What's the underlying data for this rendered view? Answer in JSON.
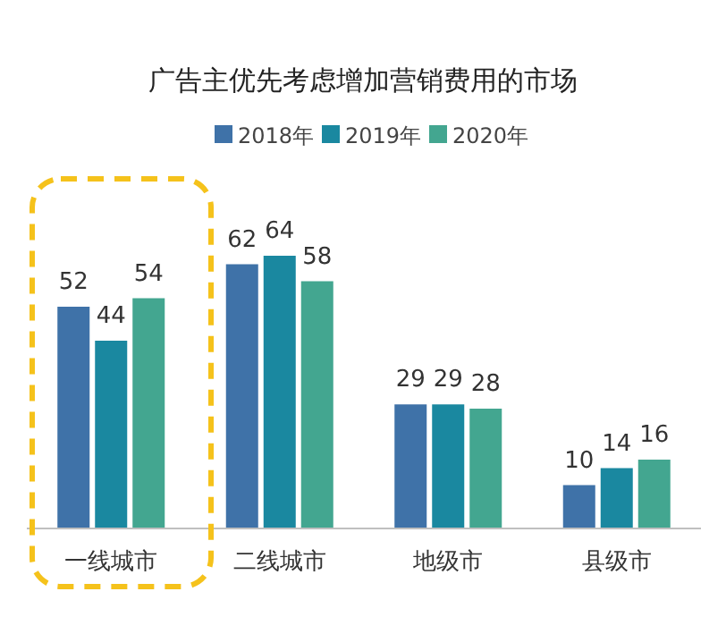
{
  "chart_data": {
    "type": "bar",
    "title": "广告主优先考虑增加营销费用的市场",
    "categories": [
      "一线城市",
      "二线城市",
      "地级市",
      "县级市"
    ],
    "series": [
      {
        "name": "2018年",
        "color": "#3f72a8",
        "values": [
          52,
          62,
          29,
          10
        ]
      },
      {
        "name": "2019年",
        "color": "#1a88a0",
        "values": [
          44,
          64,
          29,
          14
        ]
      },
      {
        "name": "2020年",
        "color": "#43a690",
        "values": [
          54,
          58,
          28,
          16
        ]
      }
    ],
    "data_labels": true,
    "legend": "top"
  }
}
